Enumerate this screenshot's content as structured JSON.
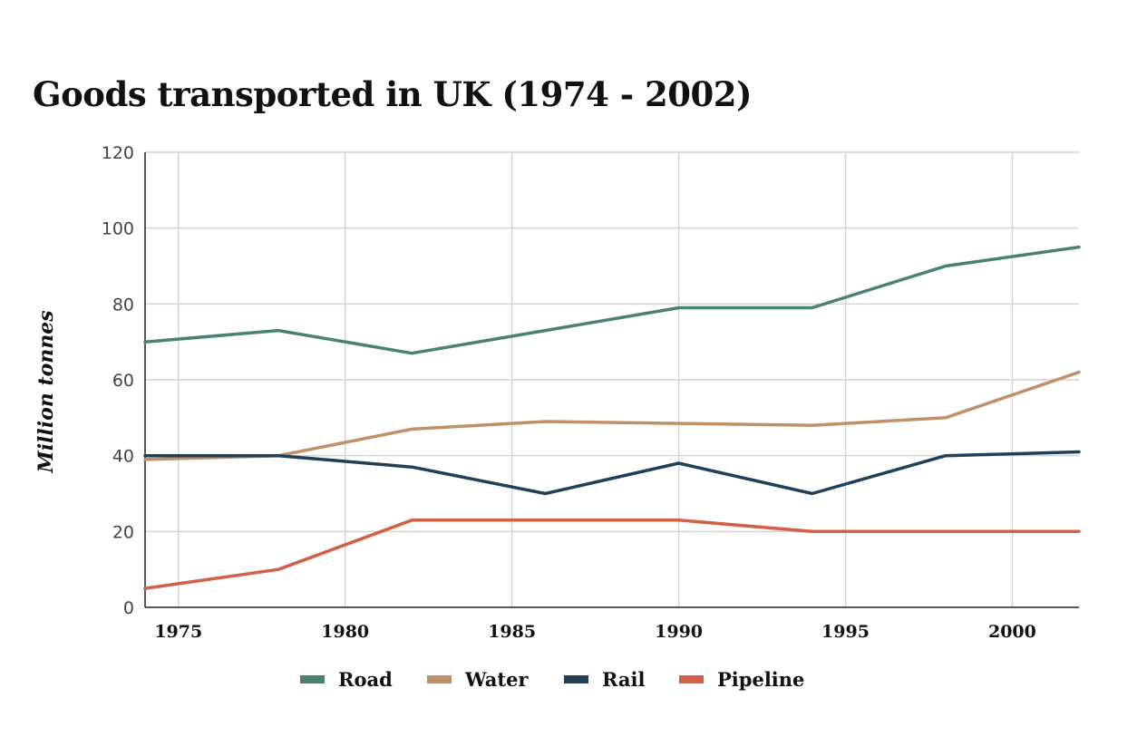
{
  "chart_data": {
    "type": "line",
    "title": "Goods transported in UK (1974 - 2002)",
    "xlabel": "",
    "ylabel": "Million tonnes",
    "xlim": [
      1974,
      2002
    ],
    "ylim": [
      0,
      120
    ],
    "x": [
      1974,
      1978,
      1982,
      1986,
      1990,
      1994,
      1998,
      2002
    ],
    "x_ticks": [
      1975,
      1980,
      1985,
      1990,
      1995,
      2000
    ],
    "x_tick_labels": [
      "1975",
      "1980",
      "1985",
      "1990",
      "1995",
      "2000"
    ],
    "y_ticks": [
      0,
      20,
      40,
      60,
      80,
      100,
      120
    ],
    "y_tick_labels": [
      "0",
      "20",
      "40",
      "60",
      "80",
      "100",
      "120"
    ],
    "grid": true,
    "legend_position": "bottom-center",
    "series": [
      {
        "name": "Road",
        "color": "#4a8271",
        "values": [
          70,
          73,
          67,
          73,
          79,
          79,
          90,
          95
        ]
      },
      {
        "name": "Water",
        "color": "#c09066",
        "values": [
          39,
          40,
          47,
          49,
          48.5,
          48,
          50,
          62
        ]
      },
      {
        "name": "Rail",
        "color": "#1f4058",
        "values": [
          40,
          40,
          37,
          30,
          38,
          30,
          40,
          41
        ]
      },
      {
        "name": "Pipeline",
        "color": "#d35f45",
        "values": [
          5,
          10,
          23,
          23,
          23,
          20,
          20,
          20
        ]
      }
    ]
  }
}
